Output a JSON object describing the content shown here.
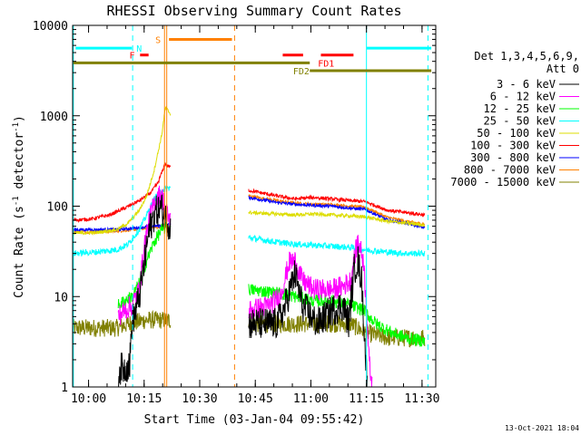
{
  "chart_data": {
    "type": "line",
    "title": "RHESSI Observing Summary Count Rates",
    "xlabel": "Start Time (03-Jan-04 09:55:42)",
    "ylabel": "Count Rate (s",
    "ylabel_sup": "-1",
    "ylabel_mid": " detector",
    "ylabel_end": ")",
    "x_unit": "minutes after 09:55:42 (time-of-day axis)",
    "xlim_minutes": [
      0,
      98
    ],
    "ylim": [
      1,
      10000
    ],
    "yscale": "log",
    "x_ticks": [
      {
        "label": "10:00",
        "m": 4.3
      },
      {
        "label": "10:15",
        "m": 19.3
      },
      {
        "label": "10:30",
        "m": 34.3
      },
      {
        "label": "10:45",
        "m": 49.3
      },
      {
        "label": "11:00",
        "m": 64.3
      },
      {
        "label": "11:15",
        "m": 79.3
      },
      {
        "label": "11:30",
        "m": 94.3
      }
    ],
    "y_ticks": [
      {
        "label": "1",
        "v": 1
      },
      {
        "label": "10",
        "v": 10
      },
      {
        "label": "100",
        "v": 100
      },
      {
        "label": "1000",
        "v": 1000
      },
      {
        "label": "10000",
        "v": 10000
      }
    ],
    "legend": {
      "header1": "Det 1,3,4,5,6,9,",
      "header2": "Att 0",
      "placement": "right"
    },
    "footer_date": "13-Oct-2021 18:04",
    "series": [
      {
        "name": "3 - 6 keV",
        "color": "#000000",
        "gap_start": 26.5,
        "gap_end": 47.5,
        "noise": 0.18,
        "points": [
          [
            12.3,
            1.0
          ],
          [
            12.5,
            1.6
          ],
          [
            14,
            1.6
          ],
          [
            15.4,
            1.8
          ],
          [
            16,
            5
          ],
          [
            17,
            7
          ],
          [
            18,
            10
          ],
          [
            19.5,
            25
          ],
          [
            20.5,
            50
          ],
          [
            22,
            80
          ],
          [
            22.8,
            90
          ],
          [
            24,
            95
          ],
          [
            25,
            75
          ],
          [
            26.3,
            60
          ],
          [
            47.5,
            5
          ],
          [
            55,
            5
          ],
          [
            57,
            7
          ],
          [
            60,
            18
          ],
          [
            62,
            8
          ],
          [
            66,
            5
          ],
          [
            70,
            7
          ],
          [
            73,
            8
          ],
          [
            74.5,
            5
          ],
          [
            76,
            20
          ],
          [
            77,
            25
          ],
          [
            78,
            15
          ],
          [
            79.5,
            1.0
          ]
        ]
      },
      {
        "name": "6 - 12 keV",
        "color": "#ff00ff",
        "gap_start": 26.5,
        "gap_end": 47.5,
        "noise": 0.12,
        "points": [
          [
            12.3,
            6
          ],
          [
            14,
            7
          ],
          [
            16,
            8
          ],
          [
            18,
            12
          ],
          [
            19.5,
            40
          ],
          [
            21,
            80
          ],
          [
            22.5,
            120
          ],
          [
            24,
            140
          ],
          [
            25,
            90
          ],
          [
            26.3,
            70
          ],
          [
            47.5,
            7
          ],
          [
            53,
            8
          ],
          [
            56,
            10
          ],
          [
            58.5,
            24
          ],
          [
            60,
            25
          ],
          [
            62,
            15
          ],
          [
            65,
            12
          ],
          [
            70,
            12
          ],
          [
            73,
            13
          ],
          [
            75,
            15
          ],
          [
            76.3,
            30
          ],
          [
            77,
            42
          ],
          [
            78.5,
            25
          ],
          [
            79.3,
            8
          ],
          [
            80,
            2
          ],
          [
            80.8,
            1.0
          ]
        ]
      },
      {
        "name": "12 - 25 keV",
        "color": "#00ff00",
        "gap_start": 26.5,
        "gap_end": 47.5,
        "noise": 0.07,
        "points": [
          [
            12.3,
            8
          ],
          [
            14,
            9
          ],
          [
            16,
            10
          ],
          [
            18,
            14
          ],
          [
            20,
            25
          ],
          [
            22,
            40
          ],
          [
            24,
            55
          ],
          [
            26.3,
            60
          ],
          [
            47.5,
            12
          ],
          [
            55,
            11
          ],
          [
            60,
            10
          ],
          [
            65,
            9
          ],
          [
            70,
            9
          ],
          [
            75,
            8
          ],
          [
            79,
            7
          ],
          [
            80,
            6
          ],
          [
            82,
            5
          ],
          [
            86,
            4
          ],
          [
            90,
            3.5
          ],
          [
            95,
            3.2
          ]
        ]
      },
      {
        "name": "25 - 50 keV",
        "color": "#00ffff",
        "gap_start": 26.5,
        "gap_end": 47.5,
        "noise": 0.035,
        "points": [
          [
            0,
            30
          ],
          [
            6,
            31
          ],
          [
            12,
            33
          ],
          [
            15,
            38
          ],
          [
            18,
            55
          ],
          [
            20,
            80
          ],
          [
            22,
            120
          ],
          [
            24,
            150
          ],
          [
            26.3,
            160
          ],
          [
            47.5,
            45
          ],
          [
            55,
            40
          ],
          [
            60,
            38
          ],
          [
            65,
            37
          ],
          [
            70,
            36
          ],
          [
            75,
            35
          ],
          [
            79,
            33
          ],
          [
            85,
            31
          ],
          [
            90,
            30
          ],
          [
            95,
            30
          ]
        ]
      },
      {
        "name": "50 - 100 keV",
        "color": "#dddd00",
        "gap_start": 26.5,
        "gap_end": 47.5,
        "noise": 0.02,
        "points": [
          [
            0,
            50
          ],
          [
            6,
            51
          ],
          [
            12,
            55
          ],
          [
            15,
            65
          ],
          [
            18,
            90
          ],
          [
            20,
            130
          ],
          [
            22,
            250
          ],
          [
            24,
            600
          ],
          [
            25,
            1200
          ],
          [
            25.3,
            1200
          ],
          [
            47.5,
            85
          ],
          [
            55,
            82
          ],
          [
            60,
            80
          ],
          [
            65,
            82
          ],
          [
            70,
            80
          ],
          [
            75,
            78
          ],
          [
            79,
            76
          ],
          [
            85,
            68
          ],
          [
            90,
            65
          ],
          [
            95,
            62
          ]
        ]
      },
      {
        "name": "100 - 300 keV",
        "color": "#ff0000",
        "gap_start": 26.5,
        "gap_end": 47.5,
        "noise": 0.02,
        "points": [
          [
            0,
            70
          ],
          [
            5,
            72
          ],
          [
            10,
            80
          ],
          [
            14,
            95
          ],
          [
            18,
            115
          ],
          [
            21,
            140
          ],
          [
            23,
            180
          ],
          [
            25,
            300
          ],
          [
            25.3,
            280
          ],
          [
            47.5,
            150
          ],
          [
            55,
            130
          ],
          [
            60,
            120
          ],
          [
            65,
            125
          ],
          [
            70,
            120
          ],
          [
            75,
            115
          ],
          [
            79,
            112
          ],
          [
            85,
            90
          ],
          [
            90,
            85
          ],
          [
            95,
            80
          ]
        ]
      },
      {
        "name": "300 - 800 keV",
        "color": "#0000ff",
        "gap_start": 26.5,
        "gap_end": 47.5,
        "noise": 0.018,
        "points": [
          [
            0,
            55
          ],
          [
            6,
            55
          ],
          [
            12,
            55
          ],
          [
            18,
            58
          ],
          [
            22,
            60
          ],
          [
            25,
            62
          ],
          [
            47.5,
            125
          ],
          [
            55,
            110
          ],
          [
            60,
            105
          ],
          [
            65,
            102
          ],
          [
            70,
            100
          ],
          [
            75,
            95
          ],
          [
            79,
            92
          ],
          [
            85,
            70
          ],
          [
            90,
            65
          ],
          [
            95,
            58
          ]
        ]
      },
      {
        "name": "800 - 7000 keV",
        "color": "#ff8000",
        "gap_start": 26.5,
        "gap_end": 47.5,
        "noise": 0.018,
        "points": [
          [
            0,
            52
          ],
          [
            6,
            52
          ],
          [
            12,
            53
          ],
          [
            18,
            56
          ],
          [
            22,
            58
          ],
          [
            25,
            60
          ],
          [
            47.5,
            130
          ],
          [
            55,
            115
          ],
          [
            60,
            108
          ],
          [
            65,
            105
          ],
          [
            70,
            104
          ],
          [
            75,
            100
          ],
          [
            79,
            97
          ],
          [
            85,
            75
          ],
          [
            90,
            68
          ],
          [
            95,
            63
          ]
        ]
      },
      {
        "name": "7000 - 15000 keV",
        "color": "#808000",
        "gap_start": 26.5,
        "gap_end": 47.5,
        "noise": 0.1,
        "points": [
          [
            0,
            4.5
          ],
          [
            6,
            4.5
          ],
          [
            12,
            4.5
          ],
          [
            15,
            5
          ],
          [
            20,
            5.5
          ],
          [
            24,
            5.5
          ],
          [
            47.5,
            5
          ],
          [
            55,
            5
          ],
          [
            60,
            5
          ],
          [
            65,
            5
          ],
          [
            70,
            5
          ],
          [
            75,
            5
          ],
          [
            79,
            4
          ],
          [
            85,
            3.5
          ],
          [
            90,
            3.5
          ],
          [
            95,
            3.5
          ]
        ]
      }
    ],
    "vertical_markers": [
      {
        "m": 0.2,
        "color": "#00ffff",
        "style": "solid"
      },
      {
        "m": 16.2,
        "color": "#00ffff",
        "style": "dashed"
      },
      {
        "m": 24.8,
        "color": "#ff8000",
        "style": "solid"
      },
      {
        "m": 25.4,
        "color": "#ff8000",
        "style": "solid"
      },
      {
        "m": 43.7,
        "color": "#ff8000",
        "style": "dashed"
      },
      {
        "m": 79.3,
        "color": "#00ffff",
        "style": "solid"
      },
      {
        "m": 95.9,
        "color": "#00ffff",
        "style": "dashed"
      }
    ],
    "flag_bars": [
      {
        "label": "N",
        "color": "#00ffff",
        "m0": 0.8,
        "m1": 16.0,
        "v": 5600,
        "label_m": 17.2,
        "label_v": 5600,
        "label_side": "right"
      },
      {
        "label": "N",
        "color": "#00ffff",
        "m0": 79.3,
        "m1": 96.8,
        "v": 5600
      },
      {
        "label": "F",
        "color": "#ff0000",
        "m0": 18.2,
        "m1": 20.5,
        "v": 4700,
        "label_m": 16.8,
        "label_v": 4700,
        "label_side": "left"
      },
      {
        "label": "S",
        "color": "#ff8000",
        "m0": 26.0,
        "m1": 43.0,
        "v": 7000,
        "label_m": 23.8,
        "label_v": 7000,
        "label_side": "left"
      },
      {
        "label": "",
        "color": "#ff0000",
        "m0": 56.7,
        "m1": 62.2,
        "v": 4700
      },
      {
        "label": "FD1",
        "color": "#ff0000",
        "m0": 67.0,
        "m1": 75.8,
        "v": 4700,
        "label_m": 66.2,
        "label_v": 3850,
        "label_side": "right"
      },
      {
        "label": "",
        "color": "#808000",
        "m0": 0.2,
        "m1": 64.0,
        "v": 3850
      },
      {
        "label": "FD2",
        "color": "#808000",
        "m0": 64.0,
        "m1": 96.8,
        "v": 3150,
        "label_m": 59.5,
        "label_v": 3150,
        "label_side": "right"
      }
    ]
  }
}
